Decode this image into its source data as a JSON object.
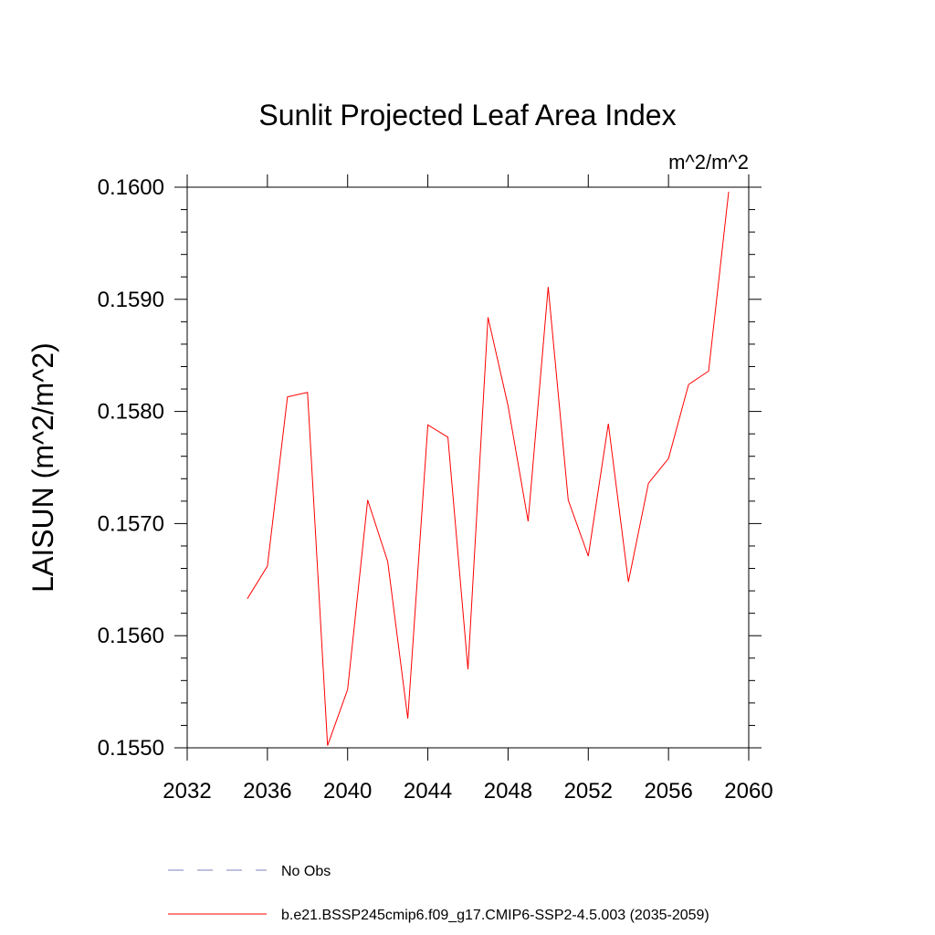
{
  "chart_data": {
    "type": "line",
    "title": "Sunlit Projected Leaf Area Index",
    "units_label": "m^2/m^2",
    "ylabel": "LAISUN  (m^2/m^2)",
    "xlabel": "",
    "xlim": [
      2032,
      2060
    ],
    "ylim": [
      0.155,
      0.16
    ],
    "x_ticks": [
      "2032",
      "2036",
      "2040",
      "2044",
      "2048",
      "2052",
      "2056",
      "2060"
    ],
    "y_ticks": [
      "0.1550",
      "0.1560",
      "0.1570",
      "0.1580",
      "0.1590",
      "0.1600"
    ],
    "grid": false,
    "series": [
      {
        "name": "b.e21.BSSP245cmip6.f09_g17.CMIP6-SSP2-4.5.003 (2035-2059)",
        "color": "#ff0000",
        "style": "solid",
        "x": [
          2035,
          2036,
          2037,
          2038,
          2039,
          2040,
          2041,
          2042,
          2043,
          2044,
          2045,
          2046,
          2047,
          2048,
          2049,
          2050,
          2051,
          2052,
          2053,
          2054,
          2055,
          2056,
          2057,
          2058,
          2059
        ],
        "values": [
          0.15633,
          0.15662,
          0.15813,
          0.15817,
          0.15502,
          0.15552,
          0.15721,
          0.15666,
          0.15526,
          0.15788,
          0.15777,
          0.1557,
          0.15884,
          0.15805,
          0.15702,
          0.15911,
          0.15721,
          0.15671,
          0.15789,
          0.15648,
          0.15736,
          0.15758,
          0.15824,
          0.15836,
          0.15996
        ]
      }
    ],
    "legend": [
      {
        "label": "No Obs",
        "color": "#7f7fbf",
        "style": "dashed"
      },
      {
        "label": "b.e21.BSSP245cmip6.f09_g17.CMIP6-SSP2-4.5.003 (2035-2059)",
        "color": "#ff0000",
        "style": "solid"
      }
    ]
  }
}
